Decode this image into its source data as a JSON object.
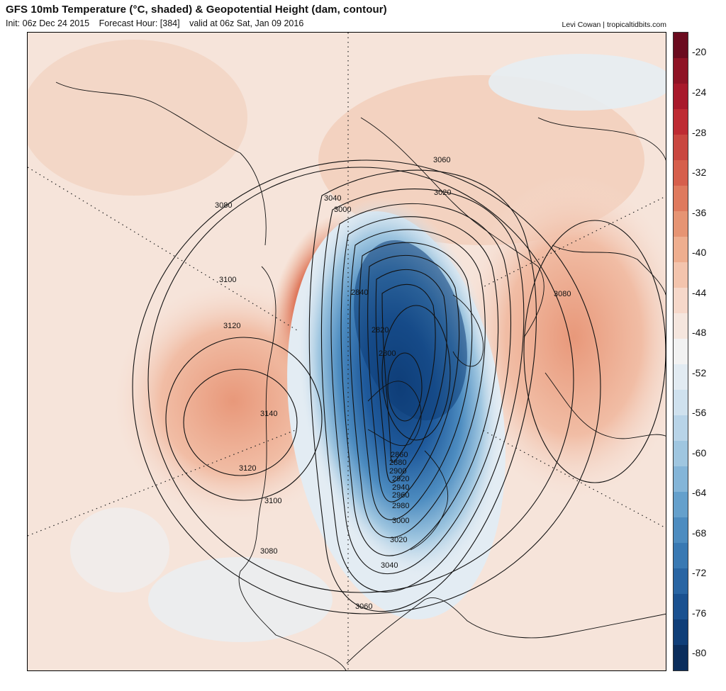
{
  "header": {
    "title": "GFS 10mb Temperature (°C, shaded) & Geopotential Height (dam, contour)",
    "init": "Init: 06z Dec 24 2015",
    "forecast_hour": "Forecast Hour: [384]",
    "valid": "valid at 06z Sat, Jan 09 2016",
    "credit": "Levi Cowan | tropicaltidbits.com"
  },
  "contour_labels": [
    "3060",
    "3020",
    "3040",
    "3000",
    "3080",
    "3100",
    "3120",
    "3140",
    "3120",
    "3100",
    "3080",
    "2840",
    "2820",
    "2800",
    "2860",
    "2880",
    "2900",
    "2920",
    "2940",
    "2960",
    "2980",
    "3000",
    "3020",
    "3040",
    "3060",
    "3080"
  ],
  "colorbar": {
    "labels": [
      "-20",
      "-24",
      "-28",
      "-32",
      "-36",
      "-40",
      "-44",
      "-48",
      "-52",
      "-56",
      "-60",
      "-64",
      "-68",
      "-72",
      "-76",
      "-80"
    ],
    "colors": [
      "#6b0b1f",
      "#8f1325",
      "#a8192b",
      "#be2b33",
      "#c94740",
      "#d65f4c",
      "#df7a5e",
      "#e69473",
      "#eeae8f",
      "#f3c4ad",
      "#f6d8ca",
      "#f5e6de",
      "#f2f2f2",
      "#e2ebf2",
      "#cfe1ee",
      "#b8d4e8",
      "#9fc6e0",
      "#84b5d8",
      "#65a0cc",
      "#4d8cc0",
      "#3979b3",
      "#2965a3",
      "#1a5190",
      "#0f3e78",
      "#0a2d5c"
    ]
  }
}
